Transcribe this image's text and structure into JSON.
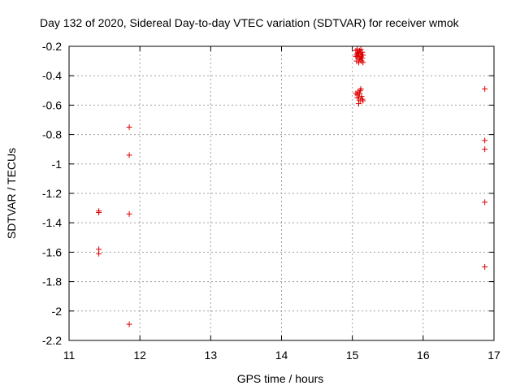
{
  "chart_data": {
    "type": "scatter",
    "title": "Day 132 of 2020, Sidereal Day-to-day VTEC variation (SDTVAR) for receiver wmok",
    "xlabel": "GPS time / hours",
    "ylabel": "SDTVAR / TECUs",
    "xlim": [
      11,
      17
    ],
    "ylim": [
      -2.2,
      -0.2
    ],
    "xticks": [
      11,
      12,
      13,
      14,
      15,
      16,
      17
    ],
    "yticks": [
      -2.2,
      -2,
      -1.8,
      -1.6,
      -1.4,
      -1.2,
      -1,
      -0.8,
      -0.6,
      -0.4,
      -0.2
    ],
    "xtick_labels": [
      "11",
      "12",
      "13",
      "14",
      "15",
      "16",
      "17"
    ],
    "ytick_labels": [
      "-2.2",
      "-2",
      "-1.8",
      "-1.6",
      "-1.4",
      "-1.2",
      "-1",
      "-0.8",
      "-0.6",
      "-0.4",
      "-0.2"
    ],
    "grid": true,
    "marker": "+",
    "color": "#dd0000",
    "series": [
      {
        "name": "SDTVAR",
        "points": [
          [
            11.42,
            -1.32
          ],
          [
            11.42,
            -1.33
          ],
          [
            11.42,
            -1.58
          ],
          [
            11.42,
            -1.61
          ],
          [
            11.85,
            -0.75
          ],
          [
            11.85,
            -0.94
          ],
          [
            11.85,
            -1.34
          ],
          [
            11.85,
            -2.09
          ],
          [
            15.05,
            -0.23
          ],
          [
            15.07,
            -0.22
          ],
          [
            15.08,
            -0.24
          ],
          [
            15.09,
            -0.25
          ],
          [
            15.1,
            -0.23
          ],
          [
            15.11,
            -0.24
          ],
          [
            15.12,
            -0.22
          ],
          [
            15.13,
            -0.26
          ],
          [
            15.14,
            -0.24
          ],
          [
            15.06,
            -0.26
          ],
          [
            15.08,
            -0.27
          ],
          [
            15.1,
            -0.28
          ],
          [
            15.12,
            -0.27
          ],
          [
            15.14,
            -0.28
          ],
          [
            15.06,
            -0.3
          ],
          [
            15.09,
            -0.31
          ],
          [
            15.11,
            -0.29
          ],
          [
            15.13,
            -0.3
          ],
          [
            15.15,
            -0.31
          ],
          [
            15.07,
            -0.25
          ],
          [
            15.05,
            -0.27
          ],
          [
            15.15,
            -0.26
          ],
          [
            15.05,
            -0.52
          ],
          [
            15.07,
            -0.53
          ],
          [
            15.08,
            -0.51
          ],
          [
            15.09,
            -0.55
          ],
          [
            15.1,
            -0.52
          ],
          [
            15.11,
            -0.5
          ],
          [
            15.12,
            -0.49
          ],
          [
            15.13,
            -0.54
          ],
          [
            15.14,
            -0.56
          ],
          [
            15.15,
            -0.57
          ],
          [
            15.09,
            -0.59
          ],
          [
            15.11,
            -0.57
          ],
          [
            15.07,
            -0.55
          ],
          [
            16.87,
            -0.49
          ],
          [
            16.87,
            -0.84
          ],
          [
            16.87,
            -0.9
          ],
          [
            16.87,
            -1.26
          ],
          [
            16.87,
            -1.7
          ]
        ]
      }
    ]
  }
}
